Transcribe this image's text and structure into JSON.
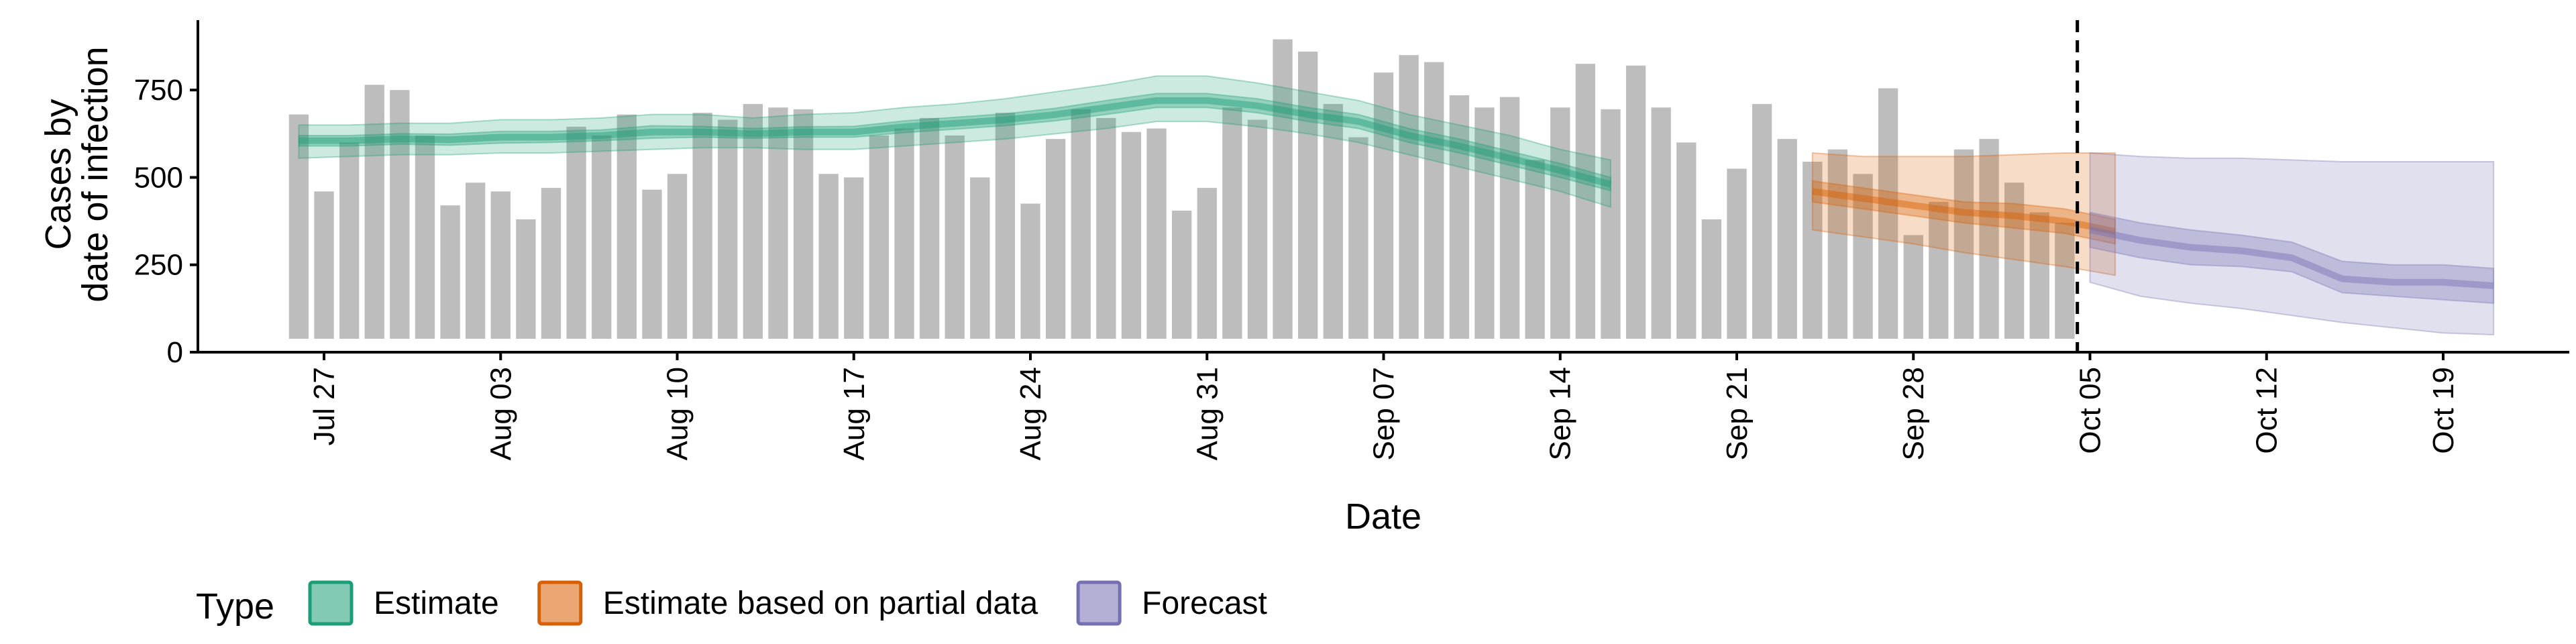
{
  "chart_data": {
    "type": "bar",
    "title": "",
    "xlabel": "Date",
    "ylabel": [
      "Cases by",
      "date of infection"
    ],
    "ylim": [
      0,
      950
    ],
    "yticks": [
      0,
      250,
      500,
      750
    ],
    "xlim": [
      "2020-07-22",
      "2020-10-24"
    ],
    "xticks": [
      {
        "date": "2020-07-27",
        "label": "Jul 27"
      },
      {
        "date": "2020-08-03",
        "label": "Aug 03"
      },
      {
        "date": "2020-08-10",
        "label": "Aug 10"
      },
      {
        "date": "2020-08-17",
        "label": "Aug 17"
      },
      {
        "date": "2020-08-24",
        "label": "Aug 24"
      },
      {
        "date": "2020-08-31",
        "label": "Aug 31"
      },
      {
        "date": "2020-09-07",
        "label": "Sep 07"
      },
      {
        "date": "2020-09-14",
        "label": "Sep 14"
      },
      {
        "date": "2020-09-21",
        "label": "Sep 21"
      },
      {
        "date": "2020-09-28",
        "label": "Sep 28"
      },
      {
        "date": "2020-10-05",
        "label": "Oct 05"
      },
      {
        "date": "2020-10-12",
        "label": "Oct 12"
      },
      {
        "date": "2020-10-19",
        "label": "Oct 19"
      }
    ],
    "reported_cases": {
      "start": "2020-07-26",
      "values": [
        680,
        460,
        600,
        765,
        750,
        620,
        420,
        485,
        460,
        380,
        470,
        645,
        620,
        680,
        465,
        510,
        685,
        665,
        710,
        700,
        695,
        510,
        500,
        620,
        640,
        670,
        620,
        500,
        685,
        425,
        610,
        695,
        670,
        630,
        640,
        405,
        470,
        700,
        665,
        895,
        860,
        710,
        615,
        800,
        850,
        830,
        735,
        700,
        730,
        550,
        700,
        825,
        695,
        820,
        700,
        600,
        380,
        525,
        710,
        610,
        545,
        580,
        510,
        755,
        335,
        430,
        580,
        610,
        485,
        400,
        370
      ]
    },
    "nowcast_date": "2020-10-04",
    "series": [
      {
        "name": "Estimate",
        "color": "#1b9e77",
        "start": "2020-07-26",
        "step_days": 2,
        "median": [
          605,
          605,
          610,
          608,
          615,
          615,
          620,
          630,
          630,
          625,
          630,
          630,
          645,
          655,
          665,
          680,
          700,
          720,
          720,
          705,
          680,
          660,
          620,
          590,
          555,
          520,
          480
        ],
        "lower50": [
          590,
          590,
          595,
          592,
          598,
          600,
          605,
          612,
          615,
          612,
          615,
          615,
          628,
          638,
          648,
          662,
          680,
          700,
          700,
          685,
          660,
          640,
          600,
          570,
          535,
          500,
          462
        ],
        "upper50": [
          620,
          620,
          625,
          624,
          632,
          632,
          636,
          648,
          646,
          640,
          645,
          646,
          662,
          672,
          682,
          698,
          720,
          740,
          740,
          725,
          700,
          680,
          640,
          610,
          575,
          540,
          500
        ],
        "lower90": [
          555,
          560,
          565,
          565,
          570,
          570,
          575,
          580,
          585,
          585,
          580,
          580,
          590,
          600,
          610,
          625,
          640,
          660,
          660,
          645,
          625,
          600,
          565,
          530,
          495,
          460,
          415
        ],
        "upper90": [
          650,
          650,
          655,
          655,
          665,
          665,
          670,
          680,
          680,
          670,
          680,
          685,
          700,
          710,
          725,
          745,
          765,
          790,
          790,
          770,
          745,
          720,
          680,
          650,
          620,
          580,
          550
        ]
      },
      {
        "name": "Estimate based on partial data",
        "color": "#d95f02",
        "start": "2020-09-24",
        "step_days": 2,
        "median": [
          460,
          440,
          420,
          400,
          390,
          375,
          345
        ],
        "lower50": [
          430,
          410,
          390,
          370,
          355,
          340,
          310
        ],
        "upper50": [
          490,
          470,
          450,
          430,
          425,
          410,
          380
        ],
        "lower90": [
          350,
          330,
          310,
          285,
          265,
          245,
          220
        ],
        "upper90": [
          570,
          560,
          560,
          560,
          565,
          570,
          570
        ]
      },
      {
        "name": "Forecast",
        "color": "#7570b3",
        "start": "2020-10-05",
        "step_days": 2,
        "median": [
          350,
          320,
          300,
          290,
          270,
          210,
          200,
          200,
          190
        ],
        "lower50": [
          300,
          270,
          250,
          245,
          230,
          170,
          160,
          150,
          140
        ],
        "upper50": [
          400,
          370,
          350,
          335,
          315,
          260,
          250,
          250,
          240
        ],
        "lower90": [
          200,
          160,
          140,
          125,
          105,
          85,
          70,
          55,
          50
        ],
        "upper90": [
          570,
          560,
          555,
          555,
          550,
          545,
          545,
          545,
          545
        ]
      }
    ],
    "legend": {
      "title": "Type",
      "position": "bottom-left",
      "entries": [
        "Estimate",
        "Estimate based on partial data",
        "Forecast"
      ]
    },
    "grid": false,
    "bar_color": "#bdbdbd"
  }
}
